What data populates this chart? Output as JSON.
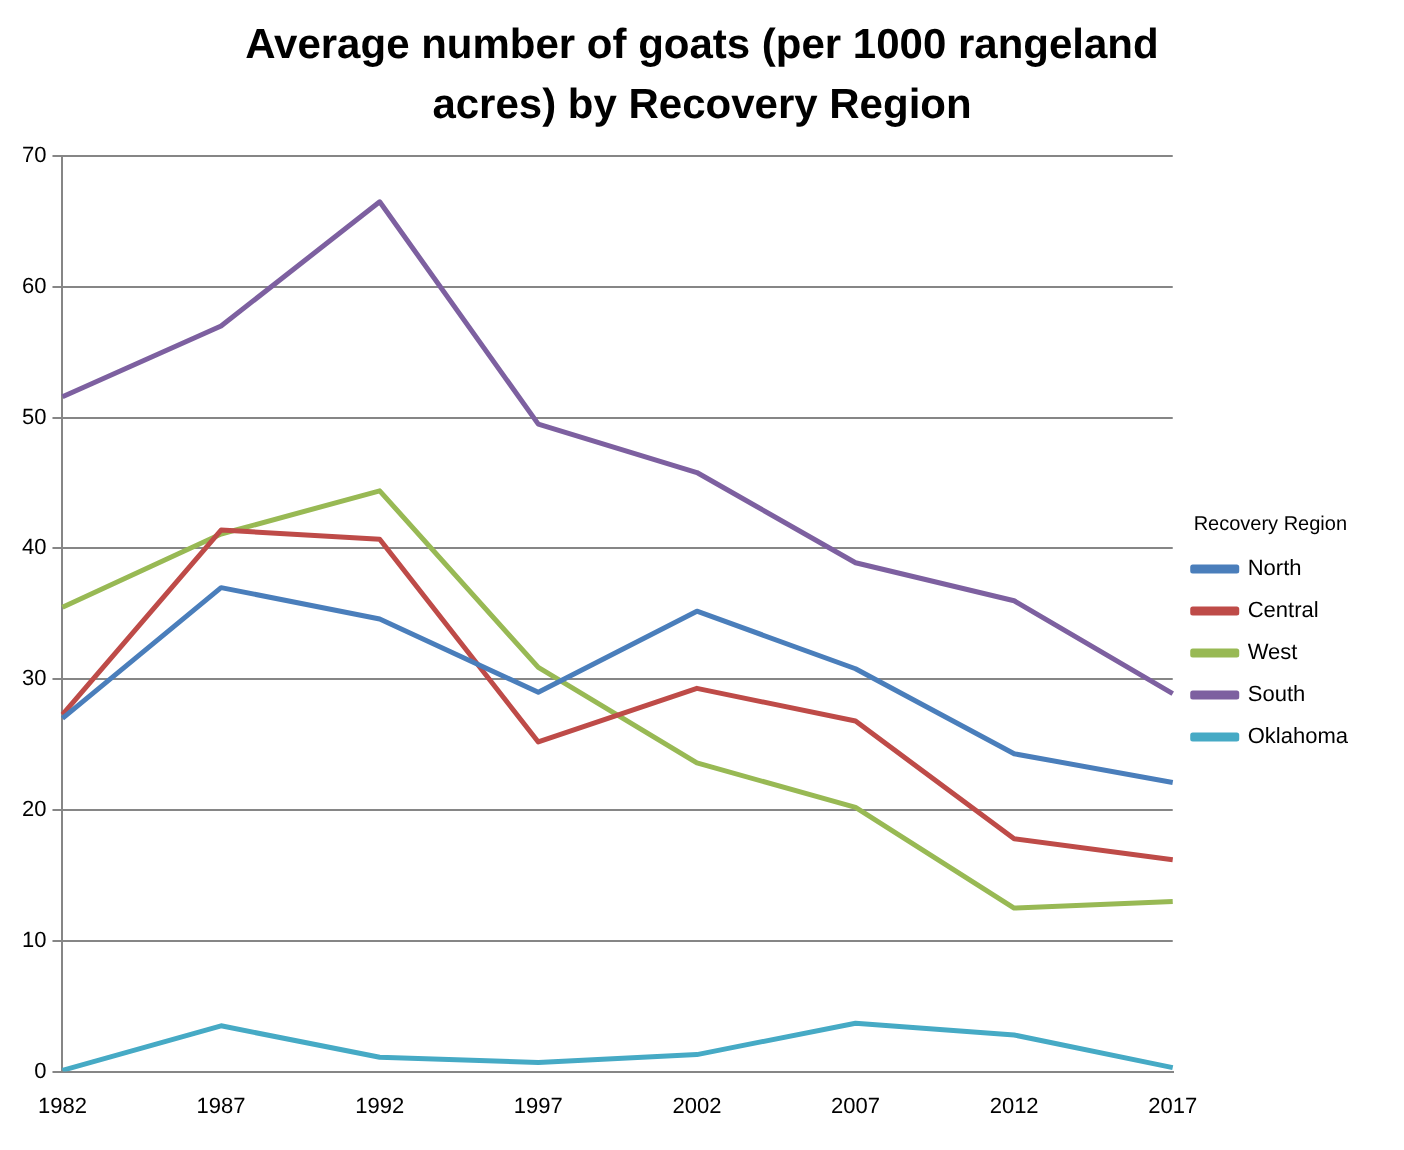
{
  "chart_data": {
    "type": "line",
    "title": "Average number of goats (per 1000 rangeland acres) by Recovery Region",
    "legend_title": "Recovery Region",
    "categories": [
      "1982",
      "1987",
      "1992",
      "1997",
      "2002",
      "2007",
      "2012",
      "2017"
    ],
    "series": [
      {
        "name": "North",
        "color": "#4a7ebb",
        "values": [
          27.0,
          37.0,
          34.6,
          29.0,
          35.2,
          30.8,
          24.3,
          22.1
        ]
      },
      {
        "name": "Central",
        "color": "#be4b48",
        "values": [
          27.3,
          41.4,
          40.7,
          25.2,
          29.3,
          26.8,
          17.8,
          16.2
        ]
      },
      {
        "name": "West",
        "color": "#98b954",
        "values": [
          35.5,
          41.1,
          44.4,
          30.9,
          23.6,
          20.2,
          12.5,
          13.0
        ]
      },
      {
        "name": "South",
        "color": "#7d60a0",
        "values": [
          51.6,
          57.0,
          66.5,
          49.5,
          45.8,
          38.9,
          36.0,
          28.9
        ]
      },
      {
        "name": "Oklahoma",
        "color": "#46aac5",
        "values": [
          0.1,
          3.5,
          1.1,
          0.7,
          1.3,
          3.7,
          2.8,
          0.3
        ]
      }
    ],
    "ylim": [
      0,
      70
    ],
    "yticks": [
      0,
      10,
      20,
      30,
      40,
      50,
      60,
      70
    ],
    "grid": "y",
    "legend": "right",
    "marker": "none",
    "line_style": "solid"
  }
}
